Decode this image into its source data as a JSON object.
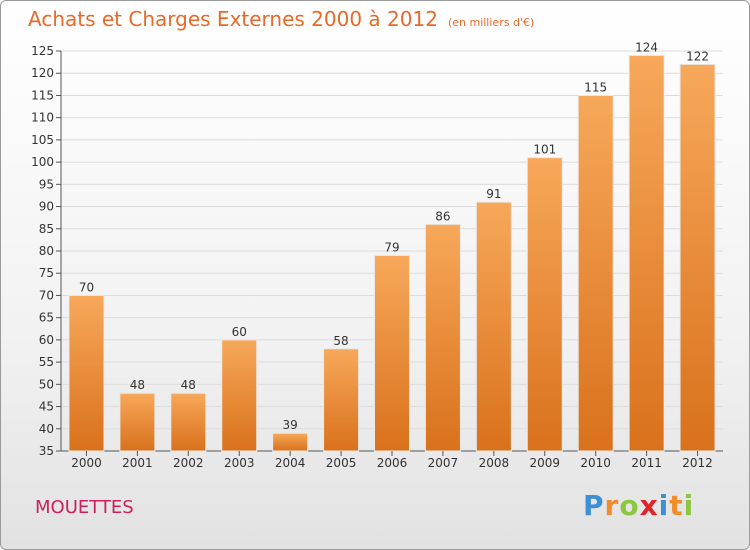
{
  "header": {
    "title": "Achats et Charges Externes 2000 à 2012",
    "unit": "(en milliers d'€)"
  },
  "commune": "MOUETTES",
  "logo": {
    "letters": [
      "P",
      "r",
      "o",
      "x",
      "i",
      "t",
      "i"
    ],
    "colors": [
      "#3b8fd4",
      "#f28c28",
      "#8cc63f",
      "#e2232a",
      "#3b8fd4",
      "#f28c28",
      "#8cc63f"
    ]
  },
  "colors": {
    "bar_top": "#f7a85a",
    "bar_bottom": "#d9711c",
    "accent": "#e8692a",
    "commune": "#cc1f5e"
  },
  "chart_data": {
    "type": "bar",
    "title": "Achats et Charges Externes 2000 à 2012",
    "categories": [
      "2000",
      "2001",
      "2002",
      "2003",
      "2004",
      "2005",
      "2006",
      "2007",
      "2008",
      "2009",
      "2010",
      "2011",
      "2012"
    ],
    "values": [
      70,
      48,
      48,
      60,
      39,
      58,
      79,
      86,
      91,
      101,
      115,
      124,
      122
    ],
    "ylim": [
      35,
      125
    ],
    "yticks": [
      35,
      40,
      45,
      50,
      55,
      60,
      65,
      70,
      75,
      80,
      85,
      90,
      95,
      100,
      105,
      110,
      115,
      120,
      125
    ],
    "grid": true,
    "xlabel": "",
    "ylabel": ""
  }
}
